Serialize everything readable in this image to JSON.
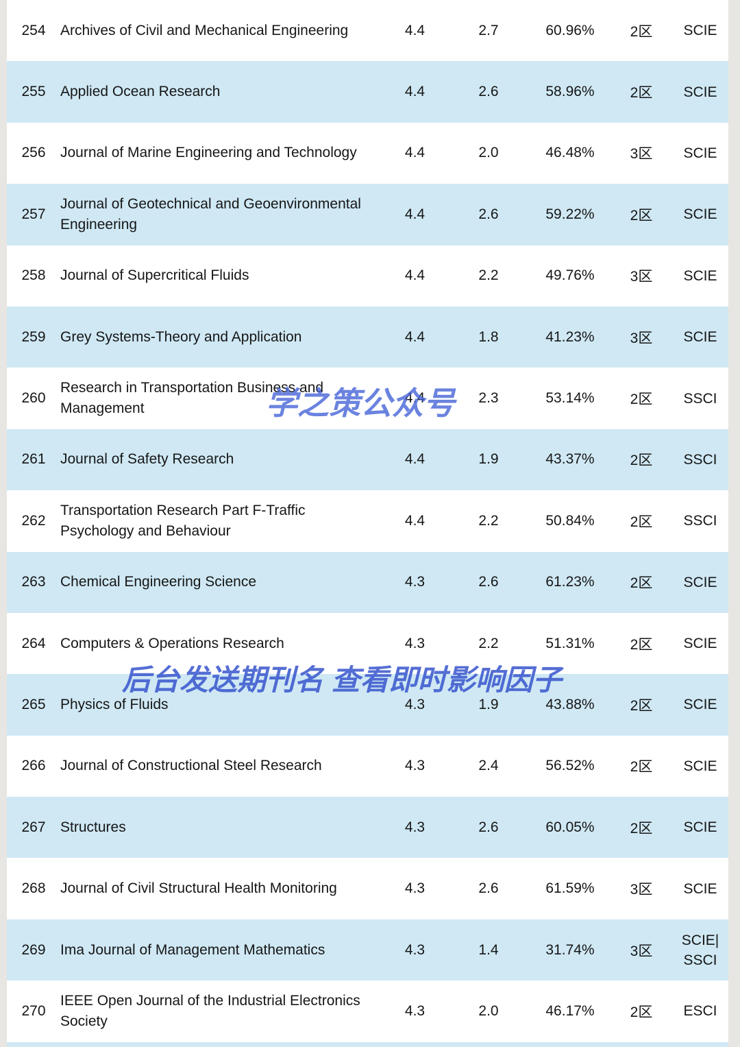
{
  "page": {
    "background_color": "#e8e6e2",
    "row_alt_color": "#cfe8f4",
    "watermark_color": "#4664d7"
  },
  "watermarks": [
    {
      "text": "学之策公众号"
    },
    {
      "text": "后台发送期刊名 查看即时影响因子"
    }
  ],
  "table": {
    "rows": [
      {
        "rank": "254",
        "journal": "Archives of Civil and Mechanical Engineering",
        "value1": "4.4",
        "value2": "2.7",
        "percent": "60.96%",
        "zone": "2区",
        "index": "SCIE"
      },
      {
        "rank": "255",
        "journal": "Applied Ocean Research",
        "value1": "4.4",
        "value2": "2.6",
        "percent": "58.96%",
        "zone": "2区",
        "index": "SCIE"
      },
      {
        "rank": "256",
        "journal": "Journal of Marine Engineering and Technology",
        "value1": "4.4",
        "value2": "2.0",
        "percent": "46.48%",
        "zone": "3区",
        "index": "SCIE"
      },
      {
        "rank": "257",
        "journal": "Journal of Geotechnical and Geoenvironmental Engineering",
        "value1": "4.4",
        "value2": "2.6",
        "percent": "59.22%",
        "zone": "2区",
        "index": "SCIE"
      },
      {
        "rank": "258",
        "journal": "Journal of Supercritical Fluids",
        "value1": "4.4",
        "value2": "2.2",
        "percent": "49.76%",
        "zone": "3区",
        "index": "SCIE"
      },
      {
        "rank": "259",
        "journal": "Grey Systems-Theory and Application",
        "value1": "4.4",
        "value2": "1.8",
        "percent": "41.23%",
        "zone": "3区",
        "index": "SCIE"
      },
      {
        "rank": "260",
        "journal": "Research in Transportation Business and Management",
        "value1": "4.4",
        "value2": "2.3",
        "percent": "53.14%",
        "zone": "2区",
        "index": "SSCI"
      },
      {
        "rank": "261",
        "journal": "Journal of Safety Research",
        "value1": "4.4",
        "value2": "1.9",
        "percent": "43.37%",
        "zone": "2区",
        "index": "SSCI"
      },
      {
        "rank": "262",
        "journal": "Transportation Research Part F-Traffic Psychology and Behaviour",
        "value1": "4.4",
        "value2": "2.2",
        "percent": "50.84%",
        "zone": "2区",
        "index": "SSCI"
      },
      {
        "rank": "263",
        "journal": "Chemical Engineering Science",
        "value1": "4.3",
        "value2": "2.6",
        "percent": "61.23%",
        "zone": "2区",
        "index": "SCIE"
      },
      {
        "rank": "264",
        "journal": "Computers & Operations Research",
        "value1": "4.3",
        "value2": "2.2",
        "percent": "51.31%",
        "zone": "2区",
        "index": "SCIE"
      },
      {
        "rank": "265",
        "journal": "Physics of Fluids",
        "value1": "4.3",
        "value2": "1.9",
        "percent": "43.88%",
        "zone": "2区",
        "index": "SCIE"
      },
      {
        "rank": "266",
        "journal": "Journal of Constructional Steel Research",
        "value1": "4.3",
        "value2": "2.4",
        "percent": "56.52%",
        "zone": "2区",
        "index": "SCIE"
      },
      {
        "rank": "267",
        "journal": "Structures",
        "value1": "4.3",
        "value2": "2.6",
        "percent": "60.05%",
        "zone": "2区",
        "index": "SCIE"
      },
      {
        "rank": "268",
        "journal": "Journal of Civil Structural Health Monitoring",
        "value1": "4.3",
        "value2": "2.6",
        "percent": "61.59%",
        "zone": "3区",
        "index": "SCIE"
      },
      {
        "rank": "269",
        "journal": "Ima Journal of Management Mathematics",
        "value1": "4.3",
        "value2": "1.4",
        "percent": "31.74%",
        "zone": "3区",
        "index": "SCIE|\nSSCI"
      },
      {
        "rank": "270",
        "journal": "IEEE Open Journal of the Industrial Electronics Society",
        "value1": "4.3",
        "value2": "2.0",
        "percent": "46.17%",
        "zone": "2区",
        "index": "ESCI"
      }
    ]
  }
}
